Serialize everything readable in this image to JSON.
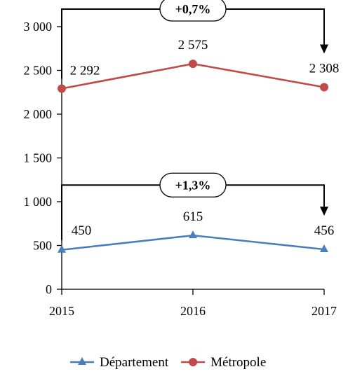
{
  "chart_data": {
    "type": "line",
    "categories": [
      "2015",
      "2016",
      "2017"
    ],
    "ylim": [
      0,
      3000
    ],
    "yticks": [
      0,
      500,
      1000,
      1500,
      2000,
      2500,
      3000
    ],
    "ytick_labels": [
      "0",
      "500",
      "1 000",
      "1 500",
      "2 000",
      "2 500",
      "3 000"
    ],
    "grid": false,
    "legend_position": "bottom",
    "series": [
      {
        "name": "Département",
        "values": [
          450,
          615,
          456
        ],
        "labels": [
          "450",
          "615",
          "456"
        ],
        "color": "#4a7ebb",
        "marker": "triangle"
      },
      {
        "name": "Métropole",
        "values": [
          2292,
          2575,
          2308
        ],
        "labels": [
          "2 292",
          "2 575",
          "2 308"
        ],
        "color": "#be4b48",
        "marker": "circle"
      }
    ],
    "annotations": [
      {
        "series": "Métropole",
        "text": "+0,7%",
        "level": 3200
      },
      {
        "series": "Département",
        "text": "+1,3%",
        "level": 1190
      }
    ]
  }
}
